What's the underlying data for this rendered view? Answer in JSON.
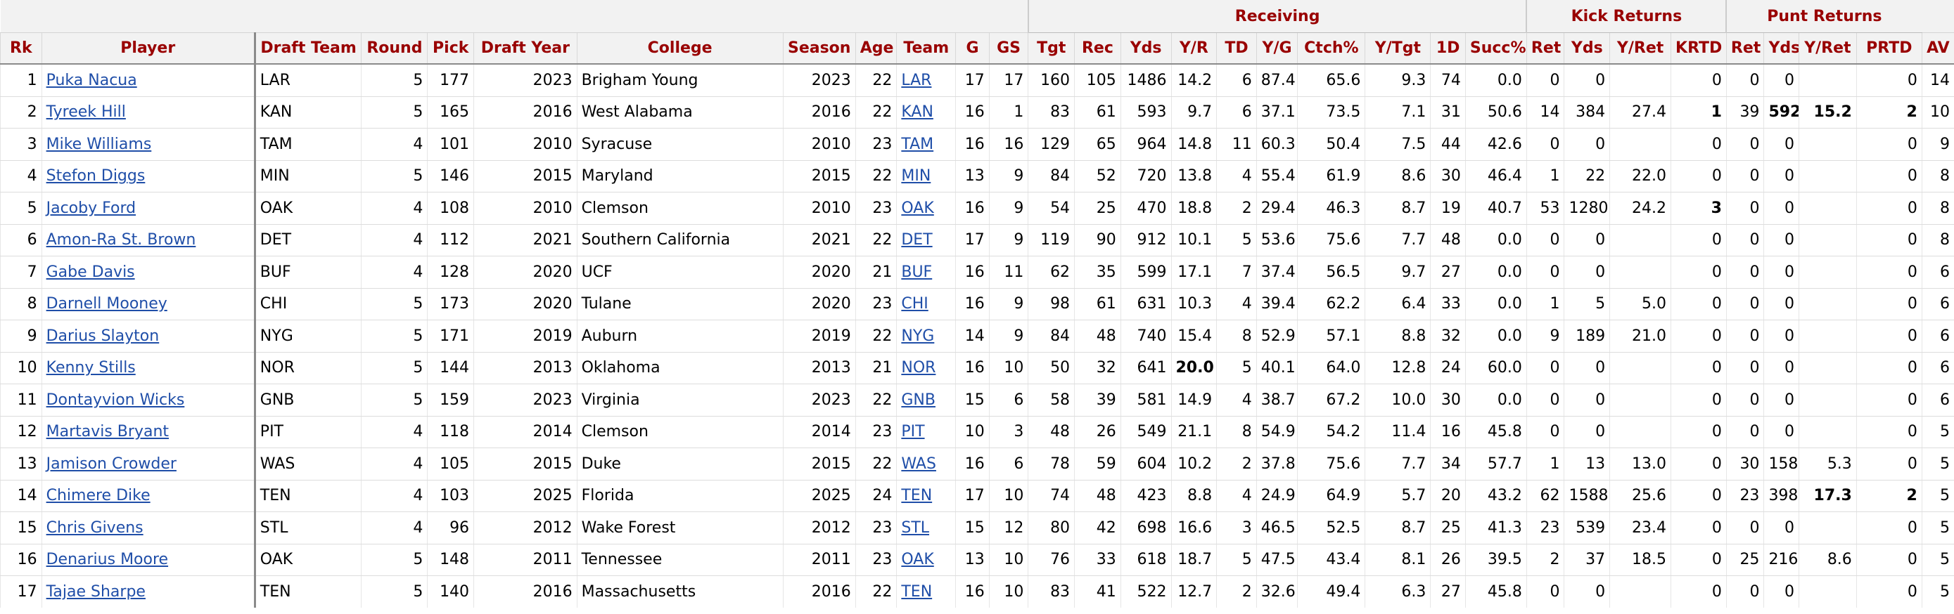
{
  "group_headers": {
    "receiving": "Receiving",
    "kick_returns": "Kick Returns",
    "punt_returns": "Punt Returns"
  },
  "columns": [
    "Rk",
    "Player",
    "Draft Team",
    "Round",
    "Pick",
    "Draft Year",
    "College",
    "Season",
    "Age",
    "Team",
    "G",
    "GS",
    "Tgt",
    "Rec",
    "Yds",
    "Y/R",
    "TD",
    "Y/G",
    "Ctch%",
    "Y/Tgt",
    "1D",
    "Succ%",
    "Ret",
    "Yds",
    "Y/Ret",
    "KRTD",
    "Ret",
    "Yds",
    "Y/Ret",
    "PRTD",
    "AV"
  ],
  "rows": [
    {
      "rk": "1",
      "player": "Puka Nacua",
      "draft_team": "LAR",
      "round": "5",
      "pick": "177",
      "draft_year": "2023",
      "college": "Brigham Young",
      "season": "2023",
      "age": "22",
      "team": "LAR",
      "g": "17",
      "gs": "17",
      "tgt": "160",
      "rec": "105",
      "yds": "1486",
      "yr": "14.2",
      "td": "6",
      "yg": "87.4",
      "ctch": "65.6",
      "ytgt": "9.3",
      "fd": "74",
      "succ": "0.0",
      "kr_ret": "0",
      "kr_yds": "0",
      "kr_yret": "",
      "krtd": "0",
      "pr_ret": "0",
      "pr_yds": "0",
      "pr_yret": "",
      "prtd": "0",
      "av": "14"
    },
    {
      "rk": "2",
      "player": "Tyreek Hill",
      "draft_team": "KAN",
      "round": "5",
      "pick": "165",
      "draft_year": "2016",
      "college": "West Alabama",
      "season": "2016",
      "age": "22",
      "team": "KAN",
      "g": "16",
      "gs": "1",
      "tgt": "83",
      "rec": "61",
      "yds": "593",
      "yr": "9.7",
      "td": "6",
      "yg": "37.1",
      "ctch": "73.5",
      "ytgt": "7.1",
      "fd": "31",
      "succ": "50.6",
      "kr_ret": "14",
      "kr_yds": "384",
      "kr_yret": "27.4",
      "krtd": "1",
      "pr_ret": "39",
      "pr_yds": "592",
      "pr_yret": "15.2",
      "prtd": "2",
      "av": "10"
    },
    {
      "rk": "3",
      "player": "Mike Williams",
      "draft_team": "TAM",
      "round": "4",
      "pick": "101",
      "draft_year": "2010",
      "college": "Syracuse",
      "season": "2010",
      "age": "23",
      "team": "TAM",
      "g": "16",
      "gs": "16",
      "tgt": "129",
      "rec": "65",
      "yds": "964",
      "yr": "14.8",
      "td": "11",
      "yg": "60.3",
      "ctch": "50.4",
      "ytgt": "7.5",
      "fd": "44",
      "succ": "42.6",
      "kr_ret": "0",
      "kr_yds": "0",
      "kr_yret": "",
      "krtd": "0",
      "pr_ret": "0",
      "pr_yds": "0",
      "pr_yret": "",
      "prtd": "0",
      "av": "9"
    },
    {
      "rk": "4",
      "player": "Stefon Diggs",
      "draft_team": "MIN",
      "round": "5",
      "pick": "146",
      "draft_year": "2015",
      "college": "Maryland",
      "season": "2015",
      "age": "22",
      "team": "MIN",
      "g": "13",
      "gs": "9",
      "tgt": "84",
      "rec": "52",
      "yds": "720",
      "yr": "13.8",
      "td": "4",
      "yg": "55.4",
      "ctch": "61.9",
      "ytgt": "8.6",
      "fd": "30",
      "succ": "46.4",
      "kr_ret": "1",
      "kr_yds": "22",
      "kr_yret": "22.0",
      "krtd": "0",
      "pr_ret": "0",
      "pr_yds": "0",
      "pr_yret": "",
      "prtd": "0",
      "av": "8"
    },
    {
      "rk": "5",
      "player": "Jacoby Ford",
      "draft_team": "OAK",
      "round": "4",
      "pick": "108",
      "draft_year": "2010",
      "college": "Clemson",
      "season": "2010",
      "age": "23",
      "team": "OAK",
      "g": "16",
      "gs": "9",
      "tgt": "54",
      "rec": "25",
      "yds": "470",
      "yr": "18.8",
      "td": "2",
      "yg": "29.4",
      "ctch": "46.3",
      "ytgt": "8.7",
      "fd": "19",
      "succ": "40.7",
      "kr_ret": "53",
      "kr_yds": "1280",
      "kr_yret": "24.2",
      "krtd": "3",
      "pr_ret": "0",
      "pr_yds": "0",
      "pr_yret": "",
      "prtd": "0",
      "av": "8"
    },
    {
      "rk": "6",
      "player": "Amon-Ra St. Brown",
      "draft_team": "DET",
      "round": "4",
      "pick": "112",
      "draft_year": "2021",
      "college": "Southern California",
      "season": "2021",
      "age": "22",
      "team": "DET",
      "g": "17",
      "gs": "9",
      "tgt": "119",
      "rec": "90",
      "yds": "912",
      "yr": "10.1",
      "td": "5",
      "yg": "53.6",
      "ctch": "75.6",
      "ytgt": "7.7",
      "fd": "48",
      "succ": "0.0",
      "kr_ret": "0",
      "kr_yds": "0",
      "kr_yret": "",
      "krtd": "0",
      "pr_ret": "0",
      "pr_yds": "0",
      "pr_yret": "",
      "prtd": "0",
      "av": "8"
    },
    {
      "rk": "7",
      "player": "Gabe Davis",
      "draft_team": "BUF",
      "round": "4",
      "pick": "128",
      "draft_year": "2020",
      "college": "UCF",
      "season": "2020",
      "age": "21",
      "team": "BUF",
      "g": "16",
      "gs": "11",
      "tgt": "62",
      "rec": "35",
      "yds": "599",
      "yr": "17.1",
      "td": "7",
      "yg": "37.4",
      "ctch": "56.5",
      "ytgt": "9.7",
      "fd": "27",
      "succ": "0.0",
      "kr_ret": "0",
      "kr_yds": "0",
      "kr_yret": "",
      "krtd": "0",
      "pr_ret": "0",
      "pr_yds": "0",
      "pr_yret": "",
      "prtd": "0",
      "av": "6"
    },
    {
      "rk": "8",
      "player": "Darnell Mooney",
      "draft_team": "CHI",
      "round": "5",
      "pick": "173",
      "draft_year": "2020",
      "college": "Tulane",
      "season": "2020",
      "age": "23",
      "team": "CHI",
      "g": "16",
      "gs": "9",
      "tgt": "98",
      "rec": "61",
      "yds": "631",
      "yr": "10.3",
      "td": "4",
      "yg": "39.4",
      "ctch": "62.2",
      "ytgt": "6.4",
      "fd": "33",
      "succ": "0.0",
      "kr_ret": "1",
      "kr_yds": "5",
      "kr_yret": "5.0",
      "krtd": "0",
      "pr_ret": "0",
      "pr_yds": "0",
      "pr_yret": "",
      "prtd": "0",
      "av": "6"
    },
    {
      "rk": "9",
      "player": "Darius Slayton",
      "draft_team": "NYG",
      "round": "5",
      "pick": "171",
      "draft_year": "2019",
      "college": "Auburn",
      "season": "2019",
      "age": "22",
      "team": "NYG",
      "g": "14",
      "gs": "9",
      "tgt": "84",
      "rec": "48",
      "yds": "740",
      "yr": "15.4",
      "td": "8",
      "yg": "52.9",
      "ctch": "57.1",
      "ytgt": "8.8",
      "fd": "32",
      "succ": "0.0",
      "kr_ret": "9",
      "kr_yds": "189",
      "kr_yret": "21.0",
      "krtd": "0",
      "pr_ret": "0",
      "pr_yds": "0",
      "pr_yret": "",
      "prtd": "0",
      "av": "6"
    },
    {
      "rk": "10",
      "player": "Kenny Stills",
      "draft_team": "NOR",
      "round": "5",
      "pick": "144",
      "draft_year": "2013",
      "college": "Oklahoma",
      "season": "2013",
      "age": "21",
      "team": "NOR",
      "g": "16",
      "gs": "10",
      "tgt": "50",
      "rec": "32",
      "yds": "641",
      "yr": "20.0",
      "td": "5",
      "yg": "40.1",
      "ctch": "64.0",
      "ytgt": "12.8",
      "fd": "24",
      "succ": "60.0",
      "kr_ret": "0",
      "kr_yds": "0",
      "kr_yret": "",
      "krtd": "0",
      "pr_ret": "0",
      "pr_yds": "0",
      "pr_yret": "",
      "prtd": "0",
      "av": "6"
    },
    {
      "rk": "11",
      "player": "Dontayvion Wicks",
      "draft_team": "GNB",
      "round": "5",
      "pick": "159",
      "draft_year": "2023",
      "college": "Virginia",
      "season": "2023",
      "age": "22",
      "team": "GNB",
      "g": "15",
      "gs": "6",
      "tgt": "58",
      "rec": "39",
      "yds": "581",
      "yr": "14.9",
      "td": "4",
      "yg": "38.7",
      "ctch": "67.2",
      "ytgt": "10.0",
      "fd": "30",
      "succ": "0.0",
      "kr_ret": "0",
      "kr_yds": "0",
      "kr_yret": "",
      "krtd": "0",
      "pr_ret": "0",
      "pr_yds": "0",
      "pr_yret": "",
      "prtd": "0",
      "av": "6"
    },
    {
      "rk": "12",
      "player": "Martavis Bryant",
      "draft_team": "PIT",
      "round": "4",
      "pick": "118",
      "draft_year": "2014",
      "college": "Clemson",
      "season": "2014",
      "age": "23",
      "team": "PIT",
      "g": "10",
      "gs": "3",
      "tgt": "48",
      "rec": "26",
      "yds": "549",
      "yr": "21.1",
      "td": "8",
      "yg": "54.9",
      "ctch": "54.2",
      "ytgt": "11.4",
      "fd": "16",
      "succ": "45.8",
      "kr_ret": "0",
      "kr_yds": "0",
      "kr_yret": "",
      "krtd": "0",
      "pr_ret": "0",
      "pr_yds": "0",
      "pr_yret": "",
      "prtd": "0",
      "av": "5"
    },
    {
      "rk": "13",
      "player": "Jamison Crowder",
      "draft_team": "WAS",
      "round": "4",
      "pick": "105",
      "draft_year": "2015",
      "college": "Duke",
      "season": "2015",
      "age": "22",
      "team": "WAS",
      "g": "16",
      "gs": "6",
      "tgt": "78",
      "rec": "59",
      "yds": "604",
      "yr": "10.2",
      "td": "2",
      "yg": "37.8",
      "ctch": "75.6",
      "ytgt": "7.7",
      "fd": "34",
      "succ": "57.7",
      "kr_ret": "1",
      "kr_yds": "13",
      "kr_yret": "13.0",
      "krtd": "0",
      "pr_ret": "30",
      "pr_yds": "158",
      "pr_yret": "5.3",
      "prtd": "0",
      "av": "5"
    },
    {
      "rk": "14",
      "player": "Chimere Dike",
      "draft_team": "TEN",
      "round": "4",
      "pick": "103",
      "draft_year": "2025",
      "college": "Florida",
      "season": "2025",
      "age": "24",
      "team": "TEN",
      "g": "17",
      "gs": "10",
      "tgt": "74",
      "rec": "48",
      "yds": "423",
      "yr": "8.8",
      "td": "4",
      "yg": "24.9",
      "ctch": "64.9",
      "ytgt": "5.7",
      "fd": "20",
      "succ": "43.2",
      "kr_ret": "62",
      "kr_yds": "1588",
      "kr_yret": "25.6",
      "krtd": "0",
      "pr_ret": "23",
      "pr_yds": "398",
      "pr_yret": "17.3",
      "prtd": "2",
      "av": "5"
    },
    {
      "rk": "15",
      "player": "Chris Givens",
      "draft_team": "STL",
      "round": "4",
      "pick": "96",
      "draft_year": "2012",
      "college": "Wake Forest",
      "season": "2012",
      "age": "23",
      "team": "STL",
      "g": "15",
      "gs": "12",
      "tgt": "80",
      "rec": "42",
      "yds": "698",
      "yr": "16.6",
      "td": "3",
      "yg": "46.5",
      "ctch": "52.5",
      "ytgt": "8.7",
      "fd": "25",
      "succ": "41.3",
      "kr_ret": "23",
      "kr_yds": "539",
      "kr_yret": "23.4",
      "krtd": "0",
      "pr_ret": "0",
      "pr_yds": "0",
      "pr_yret": "",
      "prtd": "0",
      "av": "5"
    },
    {
      "rk": "16",
      "player": "Denarius Moore",
      "draft_team": "OAK",
      "round": "5",
      "pick": "148",
      "draft_year": "2011",
      "college": "Tennessee",
      "season": "2011",
      "age": "23",
      "team": "OAK",
      "g": "13",
      "gs": "10",
      "tgt": "76",
      "rec": "33",
      "yds": "618",
      "yr": "18.7",
      "td": "5",
      "yg": "47.5",
      "ctch": "43.4",
      "ytgt": "8.1",
      "fd": "26",
      "succ": "39.5",
      "kr_ret": "2",
      "kr_yds": "37",
      "kr_yret": "18.5",
      "krtd": "0",
      "pr_ret": "25",
      "pr_yds": "216",
      "pr_yret": "8.6",
      "prtd": "0",
      "av": "5"
    },
    {
      "rk": "17",
      "player": "Tajae Sharpe",
      "draft_team": "TEN",
      "round": "5",
      "pick": "140",
      "draft_year": "2016",
      "college": "Massachusetts",
      "season": "2016",
      "age": "22",
      "team": "TEN",
      "g": "16",
      "gs": "10",
      "tgt": "83",
      "rec": "41",
      "yds": "522",
      "yr": "12.7",
      "td": "2",
      "yg": "32.6",
      "ctch": "49.4",
      "ytgt": "6.3",
      "fd": "27",
      "succ": "45.8",
      "kr_ret": "0",
      "kr_yds": "0",
      "kr_yret": "",
      "krtd": "0",
      "pr_ret": "0",
      "pr_yds": "0",
      "pr_yret": "",
      "prtd": "0",
      "av": "5"
    }
  ],
  "bold_cells": [
    {
      "row": 1,
      "key": "krtd"
    },
    {
      "row": 1,
      "key": "pr_yds"
    },
    {
      "row": 1,
      "key": "pr_yret"
    },
    {
      "row": 1,
      "key": "prtd"
    },
    {
      "row": 4,
      "key": "krtd"
    },
    {
      "row": 9,
      "key": "yr"
    },
    {
      "row": 13,
      "key": "pr_yret"
    },
    {
      "row": 13,
      "key": "prtd"
    }
  ],
  "colors": {
    "header_text": "#990000",
    "link": "#1f4ea8",
    "header_bg": "#f2f2f2"
  }
}
